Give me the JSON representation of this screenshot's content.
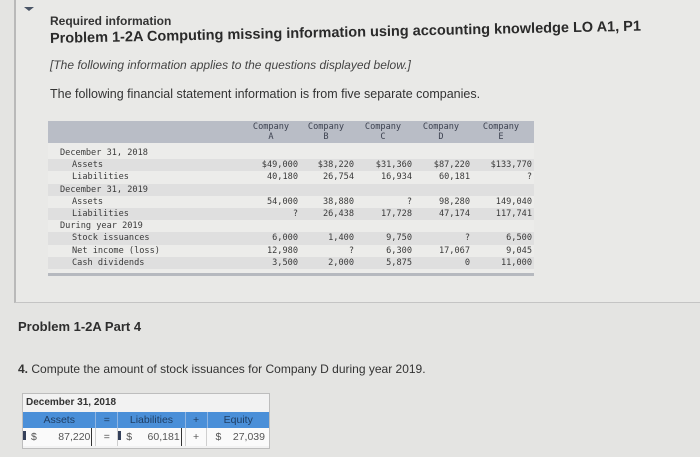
{
  "header": {
    "required_label": "Required information",
    "problem_title": "Problem 1-2A Computing missing information using accounting knowledge LO A1, P1",
    "note": "[The following information applies to the questions displayed below.]",
    "intro": "The following financial statement information is from five separate companies."
  },
  "table": {
    "columns": [
      {
        "line1": "Company",
        "line2": "A"
      },
      {
        "line1": "Company",
        "line2": "B"
      },
      {
        "line1": "Company",
        "line2": "C"
      },
      {
        "line1": "Company",
        "line2": "D"
      },
      {
        "line1": "Company",
        "line2": "E"
      }
    ],
    "rows": [
      {
        "label": "December 31, 2018",
        "indent": false,
        "values": [
          "",
          "",
          "",
          "",
          ""
        ]
      },
      {
        "label": "Assets",
        "indent": true,
        "values": [
          "$49,000",
          "$38,220",
          "$31,360",
          "$87,220",
          "$133,770"
        ]
      },
      {
        "label": "Liabilities",
        "indent": true,
        "values": [
          "40,180",
          "26,754",
          "16,934",
          "60,181",
          "?"
        ]
      },
      {
        "label": "December 31, 2019",
        "indent": false,
        "values": [
          "",
          "",
          "",
          "",
          ""
        ]
      },
      {
        "label": "Assets",
        "indent": true,
        "values": [
          "54,000",
          "38,880",
          "?",
          "98,280",
          "149,040"
        ]
      },
      {
        "label": "Liabilities",
        "indent": true,
        "values": [
          "?",
          "26,438",
          "17,728",
          "47,174",
          "117,741"
        ]
      },
      {
        "label": "During year 2019",
        "indent": false,
        "values": [
          "",
          "",
          "",
          "",
          ""
        ]
      },
      {
        "label": "Stock issuances",
        "indent": true,
        "values": [
          "6,000",
          "1,400",
          "9,750",
          "?",
          "6,500"
        ]
      },
      {
        "label": "Net income (loss)",
        "indent": true,
        "values": [
          "12,980",
          "?",
          "6,300",
          "17,067",
          "9,045"
        ]
      },
      {
        "label": "Cash dividends",
        "indent": true,
        "values": [
          "3,500",
          "2,000",
          "5,875",
          "0",
          "11,000"
        ]
      }
    ]
  },
  "part": {
    "title": "Problem 1-2A Part 4",
    "question_number": "4.",
    "question_text": "Compute the amount of stock issuances for Company D during year 2019."
  },
  "equation": {
    "date_label": "December 31, 2018",
    "headers": {
      "assets": "Assets",
      "eq": "=",
      "liabilities": "Liabilities",
      "plus": "+",
      "equity": "Equity"
    },
    "values": {
      "assets_currency": "$",
      "assets": "87,220",
      "eq": "=",
      "liabilities_currency": "$",
      "liabilities": "60,181",
      "plus": "+",
      "equity_currency": "$",
      "equity": "27,039"
    }
  }
}
